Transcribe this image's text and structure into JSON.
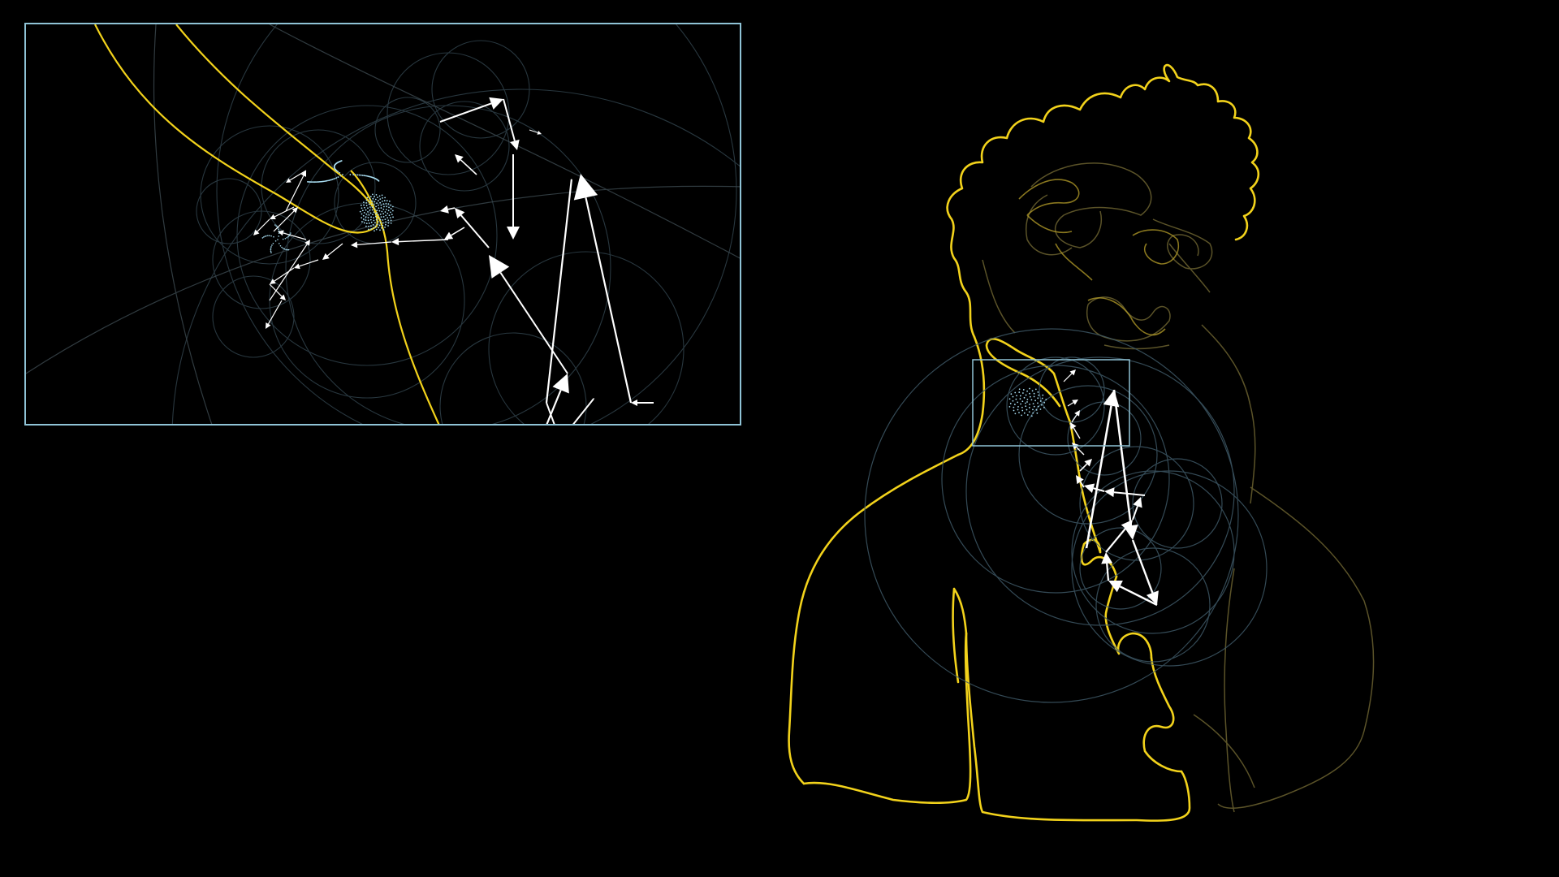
{
  "scene": {
    "description_visible_text": "",
    "colors": {
      "background": "#000000",
      "drawing": "#f2d21b",
      "drawing_faded": "#8a7a2a",
      "vectors": "#ffffff",
      "circles": "#3e5866",
      "zoom_frame": "#8fc3d6",
      "dots": "#a8dcf0"
    },
    "icons": [
      "arrow-vector-icon",
      "epicycle-circle-icon",
      "portrait-outline-icon"
    ]
  }
}
